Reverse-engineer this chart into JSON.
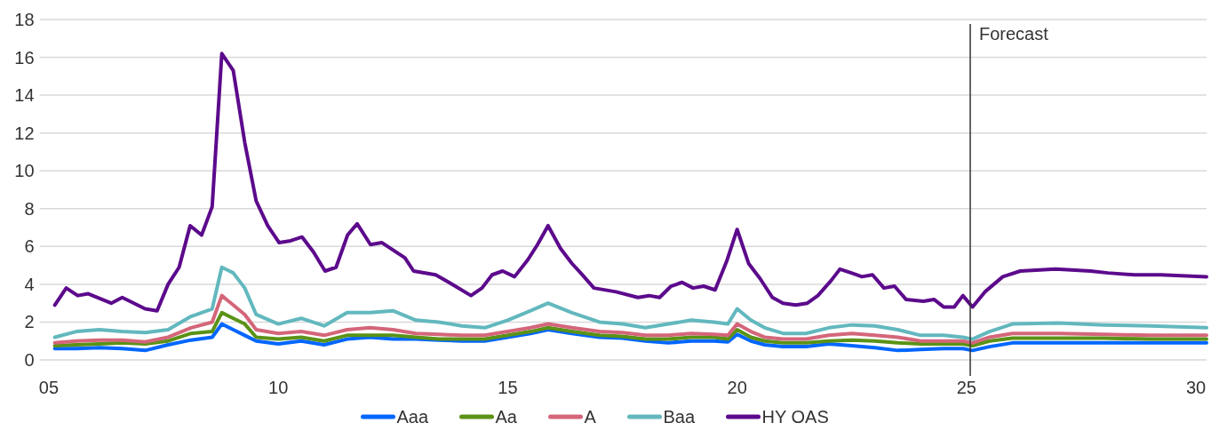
{
  "chart_data": {
    "type": "line",
    "xlim": [
      2004.8,
      2030.23
    ],
    "xticks": [
      {
        "value": 2005,
        "label": "05"
      },
      {
        "value": 2010,
        "label": "10"
      },
      {
        "value": 2015,
        "label": "15"
      },
      {
        "value": 2020,
        "label": "20"
      },
      {
        "value": 2025,
        "label": "25"
      },
      {
        "value": 2030,
        "label": "30"
      }
    ],
    "ylim": [
      0,
      18
    ],
    "yticks": [
      0,
      2,
      4,
      6,
      8,
      10,
      12,
      14,
      16,
      18
    ],
    "grid": "y",
    "legend": "bottom",
    "marker": "none",
    "line_style": "solid",
    "x": [
      2005.13,
      2005.6,
      2006.1,
      2006.6,
      2007.1,
      2007.6,
      2008.1,
      2008.56,
      2008.77,
      2009.02,
      2009.27,
      2009.52,
      2010.0,
      2010.5,
      2011.0,
      2011.5,
      2012.0,
      2012.5,
      2013.0,
      2013.5,
      2014.0,
      2014.5,
      2015.0,
      2015.5,
      2015.88,
      2016.4,
      2017.0,
      2017.5,
      2018.0,
      2018.5,
      2019.0,
      2019.5,
      2019.8,
      2020.0,
      2020.3,
      2020.6,
      2021.0,
      2021.5,
      2022.0,
      2022.5,
      2023.0,
      2023.5,
      2024.0,
      2024.5,
      2024.92,
      2025.13,
      2025.5,
      2026.0,
      2027.0,
      2028.0,
      2029.0,
      2030.23
    ],
    "ref_lines": [
      {
        "axis": "x",
        "value": 2025.08,
        "label": "Forecast",
        "color": "#333333"
      }
    ],
    "series": [
      {
        "name": "Aaa",
        "color": "#0066ff",
        "values": [
          0.6,
          0.6,
          0.65,
          0.6,
          0.5,
          0.8,
          1.05,
          1.2,
          1.9,
          1.6,
          1.3,
          1.0,
          0.85,
          1.0,
          0.8,
          1.1,
          1.2,
          1.1,
          1.1,
          1.05,
          1.0,
          1.0,
          1.2,
          1.4,
          1.6,
          1.4,
          1.2,
          1.15,
          1.0,
          0.9,
          1.0,
          1.0,
          0.95,
          1.35,
          1.0,
          0.8,
          0.7,
          0.7,
          0.85,
          0.75,
          0.65,
          0.5,
          0.55,
          0.6,
          0.6,
          0.5,
          0.7,
          0.9,
          0.9,
          0.9,
          0.9,
          0.9
        ]
      },
      {
        "name": "Aa",
        "color": "#5a9216",
        "values": [
          0.75,
          0.8,
          0.85,
          0.9,
          0.85,
          1.0,
          1.4,
          1.5,
          2.5,
          2.2,
          1.9,
          1.2,
          1.1,
          1.2,
          1.0,
          1.3,
          1.3,
          1.3,
          1.2,
          1.1,
          1.1,
          1.1,
          1.3,
          1.5,
          1.7,
          1.5,
          1.3,
          1.25,
          1.1,
          1.1,
          1.2,
          1.2,
          1.1,
          1.6,
          1.2,
          1.0,
          0.9,
          0.9,
          1.0,
          1.05,
          1.0,
          0.9,
          0.85,
          0.85,
          0.85,
          0.75,
          1.0,
          1.15,
          1.15,
          1.15,
          1.1,
          1.1
        ]
      },
      {
        "name": "A",
        "color": "#d4667a",
        "values": [
          0.9,
          1.0,
          1.05,
          1.05,
          0.95,
          1.2,
          1.7,
          2.0,
          3.4,
          2.9,
          2.4,
          1.6,
          1.4,
          1.5,
          1.3,
          1.6,
          1.7,
          1.6,
          1.4,
          1.35,
          1.3,
          1.3,
          1.5,
          1.7,
          1.9,
          1.7,
          1.5,
          1.45,
          1.3,
          1.3,
          1.4,
          1.35,
          1.3,
          1.9,
          1.5,
          1.2,
          1.1,
          1.1,
          1.3,
          1.4,
          1.3,
          1.2,
          1.0,
          1.0,
          1.0,
          0.9,
          1.2,
          1.4,
          1.4,
          1.35,
          1.3,
          1.3
        ]
      },
      {
        "name": "Baa",
        "color": "#62b8be",
        "values": [
          1.2,
          1.5,
          1.6,
          1.5,
          1.45,
          1.6,
          2.3,
          2.7,
          4.9,
          4.6,
          3.8,
          2.4,
          1.9,
          2.2,
          1.8,
          2.5,
          2.5,
          2.6,
          2.1,
          2.0,
          1.8,
          1.7,
          2.1,
          2.6,
          3.0,
          2.5,
          2.0,
          1.9,
          1.7,
          1.9,
          2.1,
          2.0,
          1.9,
          2.7,
          2.1,
          1.7,
          1.4,
          1.4,
          1.7,
          1.85,
          1.8,
          1.6,
          1.3,
          1.3,
          1.2,
          1.1,
          1.5,
          1.9,
          1.95,
          1.85,
          1.8,
          1.7
        ]
      },
      {
        "name": "HY OAS",
        "color": "#5c0a8c",
        "x": [
          2005.13,
          2005.38,
          2005.63,
          2005.86,
          2006.36,
          2006.6,
          2007.1,
          2007.36,
          2007.6,
          2007.84,
          2008.08,
          2008.33,
          2008.56,
          2008.77,
          2009.02,
          2009.27,
          2009.52,
          2009.77,
          2010.02,
          2010.27,
          2010.52,
          2010.77,
          2011.02,
          2011.26,
          2011.51,
          2011.72,
          2012.01,
          2012.26,
          2012.76,
          2012.95,
          2013.43,
          2013.72,
          2014.2,
          2014.44,
          2014.66,
          2014.89,
          2015.15,
          2015.44,
          2015.65,
          2015.88,
          2016.15,
          2016.4,
          2016.59,
          2016.88,
          2017.36,
          2017.84,
          2018.08,
          2018.31,
          2018.56,
          2018.8,
          2019.04,
          2019.27,
          2019.52,
          2019.77,
          2020.0,
          2020.25,
          2020.5,
          2020.77,
          2021.0,
          2021.28,
          2021.53,
          2021.76,
          2022.05,
          2022.24,
          2022.49,
          2022.72,
          2022.95,
          2023.2,
          2023.43,
          2023.68,
          2024.06,
          2024.29,
          2024.5,
          2024.73,
          2024.92,
          2025.13,
          2025.4,
          2025.79,
          2026.17,
          2026.94,
          2027.7,
          2028.08,
          2028.66,
          2029.23,
          2030.23
        ],
        "values": [
          2.9,
          3.8,
          3.4,
          3.5,
          3.0,
          3.3,
          2.7,
          2.6,
          4.0,
          4.9,
          7.1,
          6.6,
          8.1,
          16.2,
          15.3,
          11.5,
          8.4,
          7.1,
          6.2,
          6.3,
          6.5,
          5.7,
          4.7,
          4.9,
          6.6,
          7.2,
          6.1,
          6.2,
          5.4,
          4.7,
          4.5,
          4.1,
          3.4,
          3.8,
          4.5,
          4.7,
          4.4,
          5.3,
          6.1,
          7.1,
          5.9,
          5.1,
          4.6,
          3.8,
          3.6,
          3.3,
          3.4,
          3.3,
          3.9,
          4.1,
          3.8,
          3.9,
          3.7,
          5.2,
          6.9,
          5.1,
          4.3,
          3.3,
          3.0,
          2.9,
          3.0,
          3.4,
          4.2,
          4.8,
          4.6,
          4.4,
          4.5,
          3.8,
          3.9,
          3.2,
          3.1,
          3.2,
          2.8,
          2.8,
          3.4,
          2.8,
          3.6,
          4.4,
          4.7,
          4.8,
          4.7,
          4.6,
          4.5,
          4.5,
          4.4
        ]
      }
    ]
  }
}
